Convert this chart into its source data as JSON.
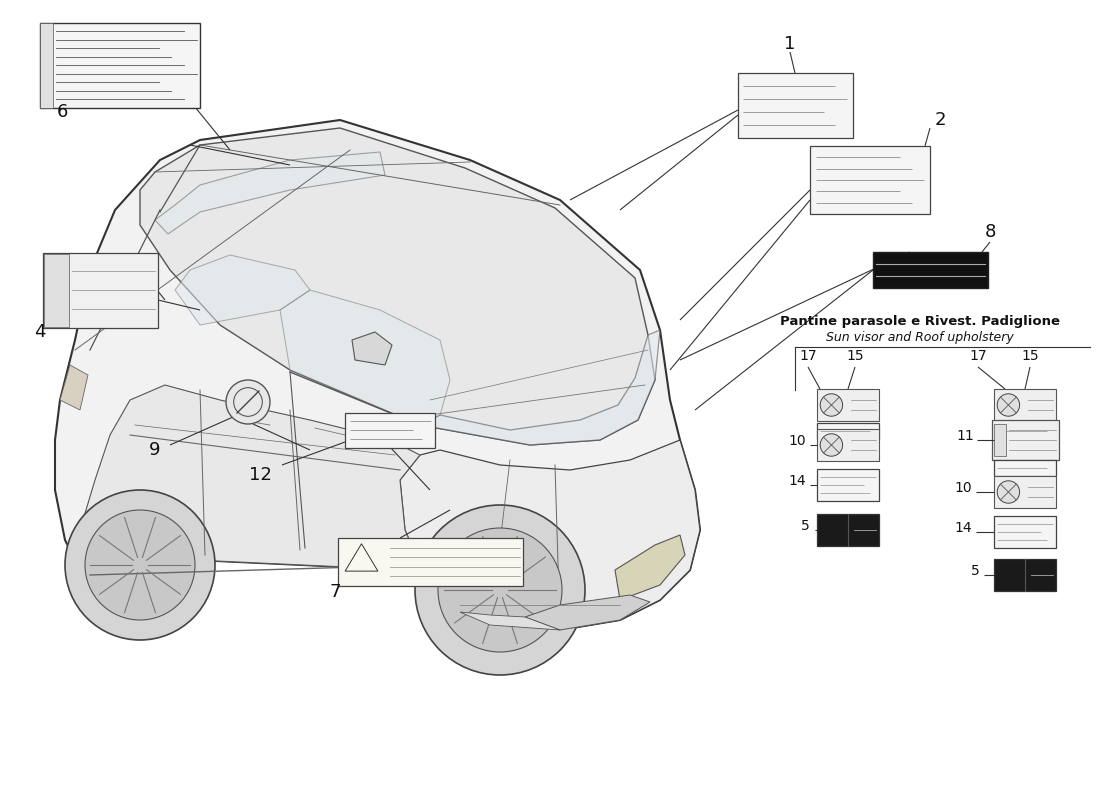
{
  "bg_color": "#ffffff",
  "line_color": "#444444",
  "dark_color": "#222222",
  "figsize": [
    11.0,
    8.0
  ],
  "dpi": 100,
  "panel_title_line1": "Pantine parasole e Rivest. Padiglione",
  "panel_title_line2": "Sun visor and Roof upholstery",
  "car_color": "#f2f2f2",
  "car_edge": "#333333",
  "roof_color": "#e8e8e8",
  "hood_color": "#ededed",
  "glass_color": "#e0e8ef",
  "wheel_color": "#d8d8d8",
  "wheel_inner": "#c0c0c0",
  "sticker_bg": "#f0f0f0",
  "sticker_dark": "#1a1a1a",
  "sticker_lines": "#888888"
}
